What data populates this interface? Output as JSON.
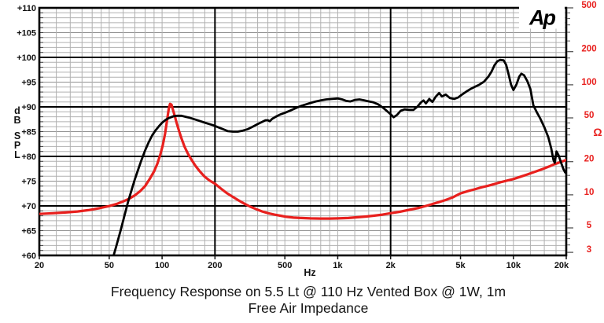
{
  "logo": {
    "text": "Ap"
  },
  "caption": {
    "line1": "Frequency Response on 5.5 Lt @ 110 Hz Vented Box @ 1W, 1m",
    "line2": "Free Air Impedance"
  },
  "colors": {
    "response": "#000000",
    "impedance": "#e8201e",
    "grid_minor": "#b0b0b0",
    "grid_mid": "#919191",
    "grid_major": "#000000",
    "left_axis_text": "#111111",
    "right_axis_text": "#e8201e"
  },
  "axes": {
    "x": {
      "unit": "Hz",
      "scale": "log",
      "min_hz": 20,
      "max_hz": 20000,
      "heavy_hz": [
        20,
        200,
        2000,
        20000
      ],
      "minor_pattern": [
        1,
        1.25,
        1.5,
        1.75,
        2,
        2.5,
        3,
        3.5,
        4,
        4.5,
        5,
        6,
        7,
        8,
        9
      ],
      "labeled_ticks": [
        {
          "hz": 20,
          "label": "20"
        },
        {
          "hz": 50,
          "label": "50"
        },
        {
          "hz": 100,
          "label": "100"
        },
        {
          "hz": 200,
          "label": "200"
        },
        {
          "hz": 500,
          "label": "500"
        },
        {
          "hz": 1000,
          "label": "1k"
        },
        {
          "hz": 2000,
          "label": "2k"
        },
        {
          "hz": 5000,
          "label": "5k"
        },
        {
          "hz": 10000,
          "label": "10k"
        },
        {
          "hz": 20000,
          "label": "20k"
        }
      ]
    },
    "y_left": {
      "unit": "dB SPL",
      "unit_stack": [
        "d",
        "B",
        "S",
        "P",
        "L"
      ],
      "min_db": 60,
      "max_db": 110,
      "minor_step_db": 1,
      "heavy_step_db": 10,
      "labeled_ticks": [
        {
          "db": 110,
          "label": "+110"
        },
        {
          "db": 105,
          "label": "+105"
        },
        {
          "db": 100,
          "label": "+100"
        },
        {
          "db": 95,
          "label": "+95"
        },
        {
          "db": 90,
          "label": "+90"
        },
        {
          "db": 85,
          "label": "+85"
        },
        {
          "db": 80,
          "label": "+80"
        },
        {
          "db": 75,
          "label": "+75"
        },
        {
          "db": 70,
          "label": "+70"
        },
        {
          "db": 65,
          "label": "+65"
        },
        {
          "db": 60,
          "label": "+60"
        }
      ]
    },
    "y_right": {
      "unit": "Ω",
      "scale": "log",
      "top_ohm": 500,
      "decades_full_scale": 2.25,
      "minor_pattern": [
        1,
        1.25,
        1.5,
        1.75,
        2,
        2.5,
        3,
        3.5,
        4,
        4.5,
        5,
        6,
        7,
        8,
        9
      ],
      "labeled_ticks": [
        {
          "ohm": 500,
          "label": "500"
        },
        {
          "ohm": 200,
          "label": "200"
        },
        {
          "ohm": 100,
          "label": "100"
        },
        {
          "ohm": 50,
          "label": "50"
        },
        {
          "ohm": 20,
          "label": "20"
        },
        {
          "ohm": 10,
          "label": "10"
        },
        {
          "ohm": 5,
          "label": "5"
        },
        {
          "ohm": 3,
          "label": "3"
        }
      ]
    }
  },
  "chart_data": {
    "type": "line",
    "title": "Frequency Response on 5.5 Lt @ 110 Hz Vented Box @ 1W, 1m / Free Air Impedance",
    "xlabel": "Hz",
    "x_scale": "log",
    "x_range": [
      20,
      20000
    ],
    "left_axis": {
      "label": "dB SPL",
      "range": [
        60,
        110
      ]
    },
    "right_axis": {
      "label": "Ω",
      "range_top": 500,
      "range_bottom": 2.8,
      "scale": "log"
    },
    "grid": true,
    "legend": "none",
    "series": [
      {
        "name": "Frequency Response (1W, 1m)",
        "y_axis": "left",
        "y_unit": "dB SPL",
        "color": "#000000",
        "points": [
          [
            53,
            60
          ],
          [
            55,
            62
          ],
          [
            58,
            65
          ],
          [
            61,
            68
          ],
          [
            64,
            70.8
          ],
          [
            67,
            73.2
          ],
          [
            70,
            75.4
          ],
          [
            73,
            77.3
          ],
          [
            76,
            79.1
          ],
          [
            80,
            81.2
          ],
          [
            84,
            82.9
          ],
          [
            88,
            84.3
          ],
          [
            92,
            85.3
          ],
          [
            96,
            86.1
          ],
          [
            100,
            86.8
          ],
          [
            105,
            87.4
          ],
          [
            110,
            87.8
          ],
          [
            116,
            88.1
          ],
          [
            122,
            88.2
          ],
          [
            129,
            88.2
          ],
          [
            136,
            88
          ],
          [
            144,
            87.8
          ],
          [
            153,
            87.5
          ],
          [
            162,
            87.2
          ],
          [
            172,
            86.9
          ],
          [
            183,
            86.6
          ],
          [
            195,
            86.3
          ],
          [
            208,
            85.9
          ],
          [
            222,
            85.5
          ],
          [
            237,
            85.1
          ],
          [
            253,
            85
          ],
          [
            270,
            85
          ],
          [
            288,
            85.2
          ],
          [
            308,
            85.5
          ],
          [
            328,
            86
          ],
          [
            348,
            86.5
          ],
          [
            368,
            86.9
          ],
          [
            388,
            87.3
          ],
          [
            400,
            87.3
          ],
          [
            410,
            87.1
          ],
          [
            424,
            87.6
          ],
          [
            448,
            88.1
          ],
          [
            474,
            88.5
          ],
          [
            500,
            88.8
          ],
          [
            540,
            89.3
          ],
          [
            580,
            89.8
          ],
          [
            620,
            90.2
          ],
          [
            660,
            90.5
          ],
          [
            700,
            90.8
          ],
          [
            750,
            91.1
          ],
          [
            800,
            91.3
          ],
          [
            860,
            91.5
          ],
          [
            930,
            91.6
          ],
          [
            1000,
            91.7
          ],
          [
            1060,
            91.5
          ],
          [
            1120,
            91.2
          ],
          [
            1180,
            91.1
          ],
          [
            1250,
            91.4
          ],
          [
            1330,
            91.5
          ],
          [
            1420,
            91.3
          ],
          [
            1510,
            91.1
          ],
          [
            1600,
            90.9
          ],
          [
            1700,
            90.5
          ],
          [
            1800,
            89.9
          ],
          [
            1900,
            89.2
          ],
          [
            2000,
            88.5
          ],
          [
            2080,
            87.9
          ],
          [
            2180,
            88.4
          ],
          [
            2280,
            89.2
          ],
          [
            2400,
            89.5
          ],
          [
            2550,
            89.4
          ],
          [
            2700,
            89.4
          ],
          [
            2850,
            90.1
          ],
          [
            2980,
            90.9
          ],
          [
            3080,
            91.3
          ],
          [
            3180,
            90.7
          ],
          [
            3320,
            91.6
          ],
          [
            3460,
            91
          ],
          [
            3620,
            92.1
          ],
          [
            3780,
            92.8
          ],
          [
            3920,
            92.1
          ],
          [
            4120,
            92.5
          ],
          [
            4350,
            91.8
          ],
          [
            4600,
            91.6
          ],
          [
            4850,
            91.9
          ],
          [
            5100,
            92.5
          ],
          [
            5400,
            93.1
          ],
          [
            5700,
            93.6
          ],
          [
            6000,
            94
          ],
          [
            6400,
            94.5
          ],
          [
            6800,
            95.1
          ],
          [
            7200,
            96.1
          ],
          [
            7500,
            97.1
          ],
          [
            7800,
            98.4
          ],
          [
            8100,
            99.2
          ],
          [
            8400,
            99.5
          ],
          [
            8800,
            99.4
          ],
          [
            9100,
            98.5
          ],
          [
            9400,
            96.5
          ],
          [
            9700,
            94.5
          ],
          [
            10000,
            93.4
          ],
          [
            10400,
            94.5
          ],
          [
            10800,
            96.1
          ],
          [
            11100,
            96.7
          ],
          [
            11500,
            96.4
          ],
          [
            12000,
            95.2
          ],
          [
            12500,
            93.6
          ],
          [
            13000,
            90.3
          ],
          [
            13600,
            88.9
          ],
          [
            14200,
            87.7
          ],
          [
            15000,
            85.9
          ],
          [
            15800,
            83.9
          ],
          [
            16400,
            81.7
          ],
          [
            16900,
            79.3
          ],
          [
            17200,
            78.7
          ],
          [
            17600,
            81
          ],
          [
            18100,
            80.2
          ],
          [
            18700,
            78.7
          ],
          [
            19300,
            77.4
          ],
          [
            19700,
            76.8
          ],
          [
            19950,
            76.6
          ]
        ]
      },
      {
        "name": "Free Air Impedance",
        "y_axis": "right",
        "y_unit": "Ω",
        "color": "#e8201e",
        "points": [
          [
            20,
            6.7
          ],
          [
            24,
            6.8
          ],
          [
            28,
            6.9
          ],
          [
            33,
            7.05
          ],
          [
            38,
            7.25
          ],
          [
            44,
            7.55
          ],
          [
            50,
            7.9
          ],
          [
            55,
            8.25
          ],
          [
            60,
            8.7
          ],
          [
            65,
            9.2
          ],
          [
            70,
            9.9
          ],
          [
            75,
            10.8
          ],
          [
            80,
            12
          ],
          [
            85,
            13.9
          ],
          [
            90,
            16.3
          ],
          [
            94,
            19.2
          ],
          [
            98,
            23.5
          ],
          [
            101,
            28.5
          ],
          [
            104,
            36
          ],
          [
            107,
            49
          ],
          [
            109,
            60
          ],
          [
            111,
            67
          ],
          [
            113,
            66
          ],
          [
            115,
            60
          ],
          [
            118,
            52
          ],
          [
            121,
            45
          ],
          [
            125,
            38
          ],
          [
            129,
            32.5
          ],
          [
            134,
            27.5
          ],
          [
            140,
            23.8
          ],
          [
            147,
            20.8
          ],
          [
            155,
            18.3
          ],
          [
            164,
            16.3
          ],
          [
            174,
            14.7
          ],
          [
            186,
            13.5
          ],
          [
            200,
            12.6
          ],
          [
            216,
            11.4
          ],
          [
            233,
            10.4
          ],
          [
            252,
            9.6
          ],
          [
            272,
            8.9
          ],
          [
            294,
            8.3
          ],
          [
            318,
            7.8
          ],
          [
            344,
            7.4
          ],
          [
            372,
            7.05
          ],
          [
            402,
            6.8
          ],
          [
            436,
            6.6
          ],
          [
            472,
            6.45
          ],
          [
            512,
            6.3
          ],
          [
            560,
            6.2
          ],
          [
            620,
            6.15
          ],
          [
            700,
            6.1
          ],
          [
            800,
            6.08
          ],
          [
            900,
            6.08
          ],
          [
            1000,
            6.1
          ],
          [
            1150,
            6.15
          ],
          [
            1300,
            6.25
          ],
          [
            1450,
            6.35
          ],
          [
            1600,
            6.45
          ],
          [
            1800,
            6.6
          ],
          [
            2000,
            6.8
          ],
          [
            2250,
            7
          ],
          [
            2550,
            7.3
          ],
          [
            2900,
            7.6
          ],
          [
            3300,
            8.05
          ],
          [
            3700,
            8.5
          ],
          [
            4100,
            8.95
          ],
          [
            4500,
            9.45
          ],
          [
            5000,
            10.3
          ],
          [
            5500,
            10.8
          ],
          [
            6000,
            11.2
          ],
          [
            6600,
            11.7
          ],
          [
            7200,
            12.1
          ],
          [
            7900,
            12.6
          ],
          [
            8600,
            13.1
          ],
          [
            9300,
            13.5
          ],
          [
            10000,
            13.9
          ],
          [
            11000,
            14.6
          ],
          [
            12000,
            15.3
          ],
          [
            13000,
            16
          ],
          [
            14000,
            16.7
          ],
          [
            15000,
            17.4
          ],
          [
            16000,
            18.1
          ],
          [
            17000,
            18.9
          ],
          [
            18000,
            19.5
          ],
          [
            19000,
            20.1
          ],
          [
            20000,
            20.7
          ]
        ]
      }
    ]
  }
}
